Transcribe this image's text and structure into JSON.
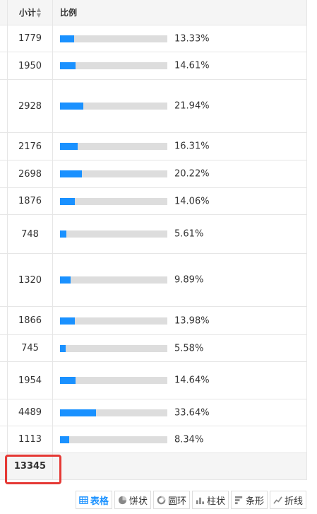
{
  "header": {
    "subtotal": "小计",
    "ratio": "比例"
  },
  "rows": [
    {
      "subtotal": "1779",
      "ratio": 13.33,
      "ratio_label": "13.33%"
    },
    {
      "subtotal": "1950",
      "ratio": 14.61,
      "ratio_label": "14.61%"
    },
    {
      "subtotal": "2928",
      "ratio": 21.94,
      "ratio_label": "21.94%"
    },
    {
      "subtotal": "2176",
      "ratio": 16.31,
      "ratio_label": "16.31%"
    },
    {
      "subtotal": "2698",
      "ratio": 20.22,
      "ratio_label": "20.22%"
    },
    {
      "subtotal": "1876",
      "ratio": 14.06,
      "ratio_label": "14.06%"
    },
    {
      "subtotal": "748",
      "ratio": 5.61,
      "ratio_label": "5.61%"
    },
    {
      "subtotal": "1320",
      "ratio": 9.89,
      "ratio_label": "9.89%"
    },
    {
      "subtotal": "1866",
      "ratio": 13.98,
      "ratio_label": "13.98%"
    },
    {
      "subtotal": "745",
      "ratio": 5.58,
      "ratio_label": "5.58%"
    },
    {
      "subtotal": "1954",
      "ratio": 14.64,
      "ratio_label": "14.64%"
    },
    {
      "subtotal": "4489",
      "ratio": 33.64,
      "ratio_label": "33.64%"
    },
    {
      "subtotal": "1113",
      "ratio": 8.34,
      "ratio_label": "8.34%"
    }
  ],
  "total": "13345",
  "tabs": [
    {
      "label": "表格",
      "icon": "table-icon",
      "active": true
    },
    {
      "label": "饼状",
      "icon": "pie-icon",
      "active": false
    },
    {
      "label": "圆环",
      "icon": "ring-icon",
      "active": false
    },
    {
      "label": "柱状",
      "icon": "column-icon",
      "active": false
    },
    {
      "label": "条形",
      "icon": "bar-icon",
      "active": false
    },
    {
      "label": "折线",
      "icon": "line-icon",
      "active": false
    }
  ],
  "colors": {
    "bar_fill": "#1a91ff",
    "bar_track": "#dddddd",
    "highlight": "#e53935",
    "active_tab": "#1a91ff"
  }
}
